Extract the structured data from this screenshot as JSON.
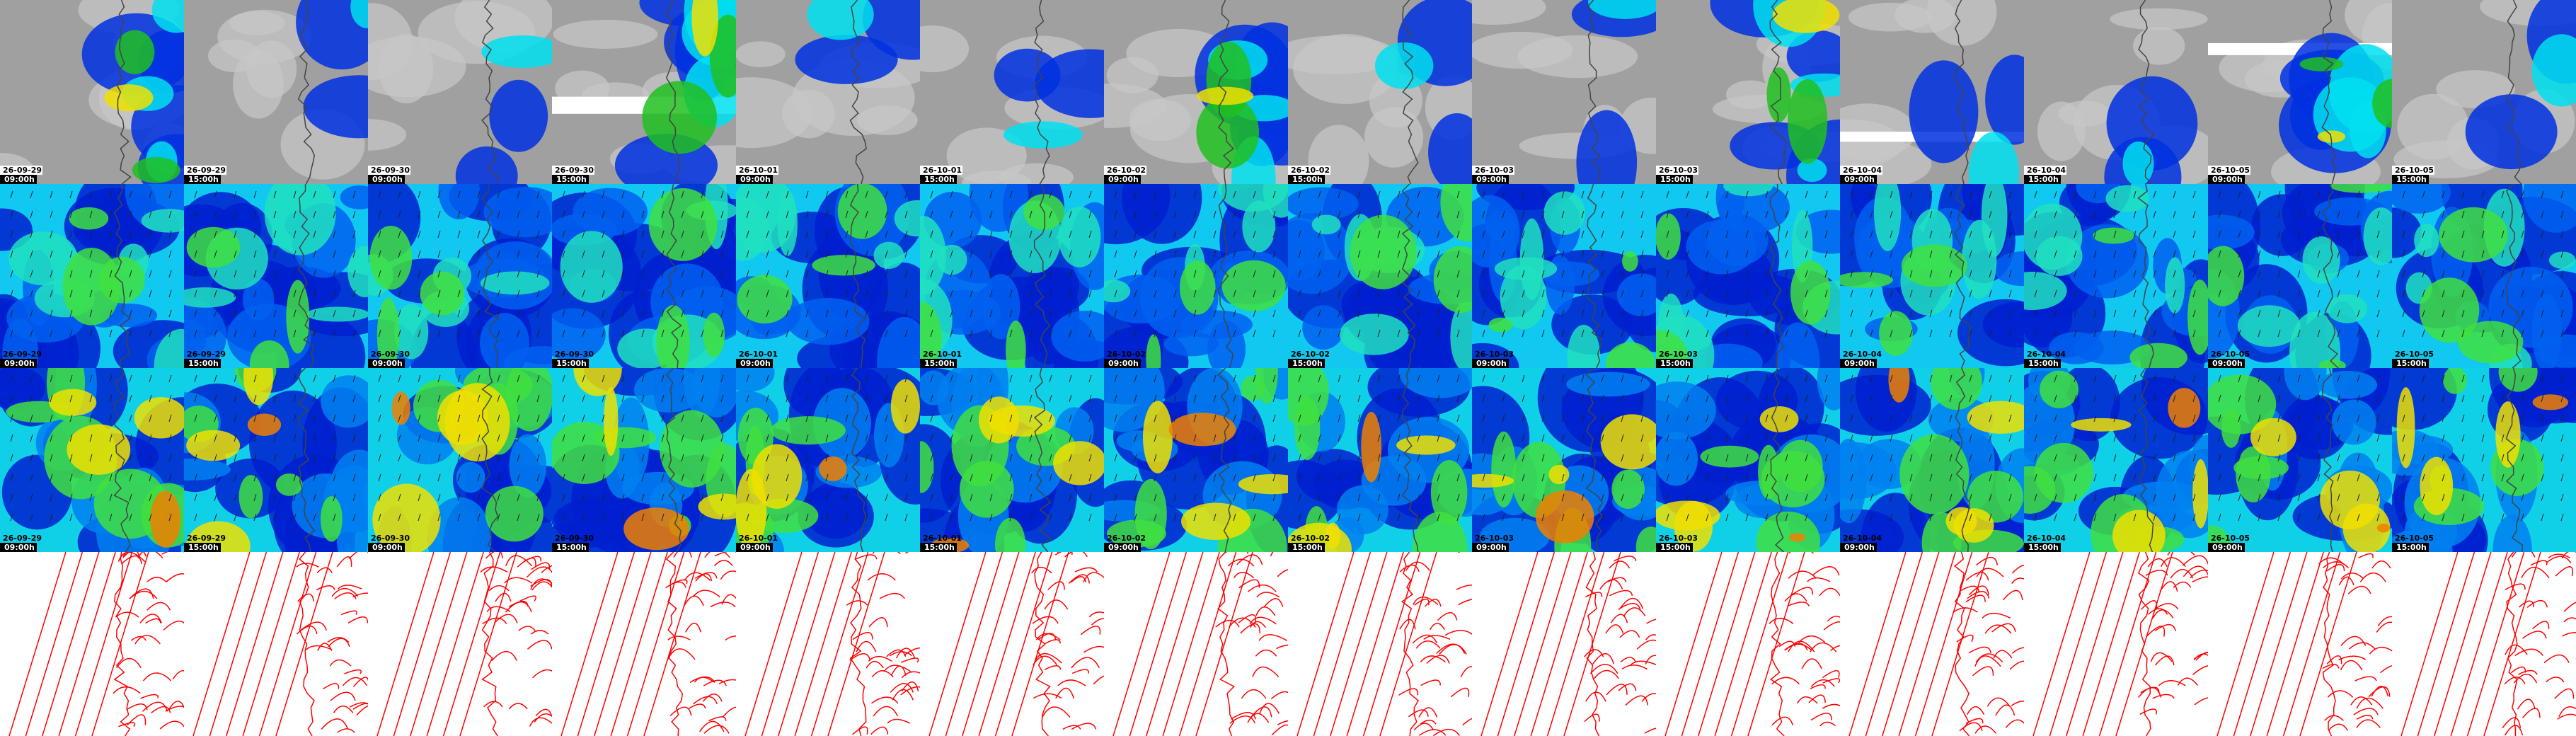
{
  "columns": [
    {
      "date": "26-09-29",
      "time": "09:00h"
    },
    {
      "date": "26-09-29",
      "time": "15:00h"
    },
    {
      "date": "26-09-30",
      "time": "09:00h"
    },
    {
      "date": "26-09-30",
      "time": "15:00h"
    },
    {
      "date": "26-10-01",
      "time": "09:00h"
    },
    {
      "date": "26-10-01",
      "time": "15:00h"
    },
    {
      "date": "26-10-02",
      "time": "09:00h"
    },
    {
      "date": "26-10-02",
      "time": "15:00h"
    },
    {
      "date": "26-10-03",
      "time": "09:00h"
    },
    {
      "date": "26-10-03",
      "time": "15:00h"
    },
    {
      "date": "26-10-04",
      "time": "09:00h"
    },
    {
      "date": "26-10-04",
      "time": "15:00h"
    },
    {
      "date": "26-10-05",
      "time": "09:00h"
    },
    {
      "date": "26-10-05",
      "time": "15:00h"
    }
  ]
}
